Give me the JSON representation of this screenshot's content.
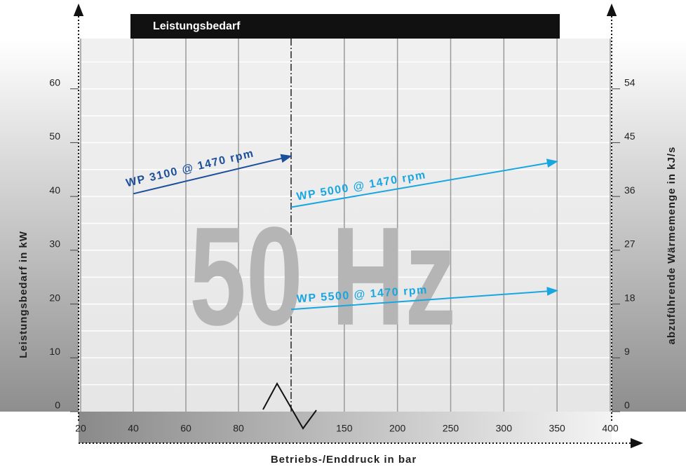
{
  "chart_data": {
    "type": "line",
    "title": "Leistungsbedarf",
    "annotation": "50 Hz",
    "x_label": "Betriebs-/Enddruck in bar",
    "y_label": "Leistungsbedarf in kW",
    "y2_label": "abzuführende Wärmemenge in kJ/s",
    "xlim": [
      20,
      400
    ],
    "x_break": 100,
    "xticks": [
      20,
      40,
      60,
      80,
      150,
      200,
      250,
      300,
      350,
      400
    ],
    "ylim": [
      0,
      70
    ],
    "yticks": [
      0,
      10,
      20,
      30,
      40,
      50,
      60
    ],
    "ygrid": [
      5,
      10,
      15,
      20,
      25,
      30,
      35,
      40,
      45,
      50,
      55,
      60,
      65
    ],
    "y2lim": [
      0,
      63
    ],
    "y2ticks": [
      0,
      9,
      18,
      27,
      36,
      45,
      54
    ],
    "grid": true,
    "series": [
      {
        "name": "WP 3100 @ 1470 rpm",
        "color": "#1b4f9a",
        "x": [
          40,
          100
        ],
        "values": [
          40.5,
          47.5
        ]
      },
      {
        "name": "WP 5000 @ 1470 rpm",
        "color": "#18a6e0",
        "x": [
          100,
          350
        ],
        "values": [
          38,
          46.5
        ]
      },
      {
        "name": "WP 5500 @ 1470 rpm",
        "color": "#18a6e0",
        "x": [
          100,
          350
        ],
        "values": [
          19,
          22.5
        ]
      }
    ]
  }
}
